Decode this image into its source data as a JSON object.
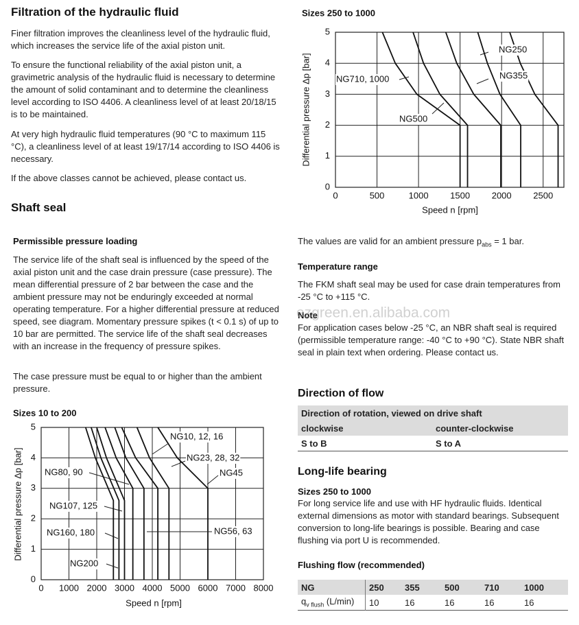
{
  "filtration": {
    "title": "Filtration of the hydraulic fluid",
    "paragraphs": [
      "Finer filtration improves the cleanliness level of the hydraulic fluid, which increases the service life of the axial piston unit.",
      "To ensure the functional reliability of the axial piston unit, a gravimetric analysis of the hydraulic fluid is necessary to determine the amount of solid contaminant and to determine the cleanliness level according to ISO 4406. A cleanliness level of at least 20/18/15 is to be maintained.",
      "At very high hydraulic fluid temperatures (90 °C to maximum 115 °C), a cleanliness level of at least 19/17/14 according to ISO 4406 is necessary.",
      "If the above classes cannot be achieved, please contact us."
    ]
  },
  "shaft_seal": {
    "title": "Shaft seal",
    "subtitle": "Permissible pressure loading",
    "paragraphs": [
      "The service life of the shaft seal is influenced by the speed of the axial piston unit and the case drain pressure (case pressure). The mean differential pressure of 2 bar between the case and the ambient pressure may not be enduringly exceeded at normal operating temperature. For a higher differential pressure at reduced speed, see diagram. Momentary pressure spikes (t < 0.1 s) of up to 10 bar are permitted. The service life of the shaft seal decreases with an increase in the frequency of pressure spikes.",
      "The case pressure must be equal to or higher than the ambient pressure."
    ],
    "validity": {
      "before": "The values are valid for an ambient pressure p",
      "sub": "abs",
      "after": " = 1 bar."
    }
  },
  "temperature": {
    "title": "Temperature range",
    "text": "The FKM shaft seal may be used for case drain temperatures from -25 °C to +115 °C."
  },
  "note": {
    "title": "Note",
    "text": "For application cases below -25 °C, an NBR shaft seal is required (permissible temperature range: -40 °C to +90 °C). State NBR shaft seal in plain text when ordering. Please contact us."
  },
  "direction": {
    "title": "Direction of flow",
    "header": "Direction of rotation, viewed on drive shaft",
    "columns": [
      "clockwise",
      "counter-clockwise"
    ],
    "row": [
      "S to B",
      "S to A"
    ]
  },
  "bearing": {
    "title": "Long-life bearing",
    "subtitle": "Sizes 250 to 1000",
    "text": "For long service life and use with HF hydraulic fluids. Identical external dimensions as motor with standard bearings. Subsequent conversion to long-life bearings is possible. Bearing and case flushing via port U is recommended.",
    "flushing_title": "Flushing flow (recommended)",
    "table": {
      "header": [
        "NG",
        "250",
        "355",
        "500",
        "710",
        "1000"
      ],
      "row_label": {
        "main": "q",
        "sub": "v flush",
        "unit": " (L/min)"
      },
      "row": [
        "10",
        "16",
        "16",
        "16",
        "16"
      ]
    }
  },
  "watermark": "ezgreen.en.alibaba.com",
  "chart_data": [
    {
      "type": "line",
      "title": "Sizes 250 to 1000",
      "x_label": "Speed n [rpm]",
      "y_label": "Differential pressure Δp [bar]",
      "xlim": [
        0,
        2750
      ],
      "ylim": [
        0,
        5
      ],
      "xticks": [
        0,
        500,
        1000,
        1500,
        2000,
        2500
      ],
      "yticks": [
        0,
        1,
        2,
        3,
        4,
        5
      ],
      "grid": true,
      "series": [
        {
          "name": "NG250",
          "color": "#111111",
          "x": [
            2098,
            2225,
            2400,
            2680,
            2680
          ],
          "values": [
            5,
            4,
            3,
            2,
            0
          ]
        },
        {
          "name": "NG355",
          "color": "#111111",
          "x": [
            1713,
            1829,
            1980,
            2230,
            2230
          ],
          "values": [
            5,
            4,
            3,
            2,
            0
          ]
        },
        {
          "name": "NG710, 1000",
          "color": "#111111",
          "x": [
            565,
            720,
            980,
            1500,
            1500,
            null,
            934,
            1060,
            1257,
            1590,
            1590
          ],
          "values": [
            5,
            4,
            3,
            2,
            0,
            null,
            5,
            4,
            3,
            2,
            0
          ]
        },
        {
          "name": "NG500",
          "color": "#111111",
          "x": [
            1328,
            1460,
            1665,
            1990,
            1990
          ],
          "values": [
            5,
            4,
            3,
            2,
            0
          ]
        }
      ]
    },
    {
      "type": "line",
      "title": "Sizes 10 to 200",
      "x_label": "Speed n [rpm]",
      "y_label": "Differential pressure Δp [bar]",
      "xlim": [
        0,
        8000
      ],
      "ylim": [
        0,
        5
      ],
      "xticks": [
        0,
        1000,
        2000,
        3000,
        4000,
        5000,
        6000,
        7000,
        8000
      ],
      "yticks": [
        0,
        1,
        2,
        3,
        4,
        5
      ],
      "grid": true,
      "series": [
        {
          "name": "NG10, 12, 16",
          "color": "#111111",
          "x": [
            4200,
            4900,
            6000,
            6000
          ],
          "values": [
            5,
            4,
            3,
            0
          ]
        },
        {
          "name": "NG23, 28, 32",
          "color": "#111111",
          "x": [
            3450,
            3900,
            4600,
            4600
          ],
          "values": [
            5,
            4,
            3,
            0
          ]
        },
        {
          "name": "NG45",
          "color": "#111111",
          "x": [
            2900,
            3400,
            4200,
            4200
          ],
          "values": [
            5,
            4,
            3,
            0
          ]
        },
        {
          "name": "NG80, 90",
          "color": "#111111",
          "x": [
            2300,
            2700,
            3300,
            3300
          ],
          "values": [
            5,
            4,
            3,
            0
          ]
        },
        {
          "name": "NG107, 125",
          "color": "#111111",
          "x": [
            2000,
            2350,
            3000,
            3000
          ],
          "values": [
            5,
            4,
            2.6,
            0
          ]
        },
        {
          "name": "NG56, 63",
          "color": "#111111",
          "x": [
            2650,
            3050,
            3700,
            3700
          ],
          "values": [
            5,
            4,
            3,
            0
          ]
        },
        {
          "name": "NG160, 180",
          "color": "#111111",
          "x": [
            1800,
            2150,
            2800,
            2800
          ],
          "values": [
            5,
            4,
            2.6,
            0
          ]
        },
        {
          "name": "NG200",
          "color": "#111111",
          "x": [
            1600,
            1950,
            2600,
            2600
          ],
          "values": [
            5,
            4,
            2.6,
            0
          ]
        }
      ]
    }
  ]
}
